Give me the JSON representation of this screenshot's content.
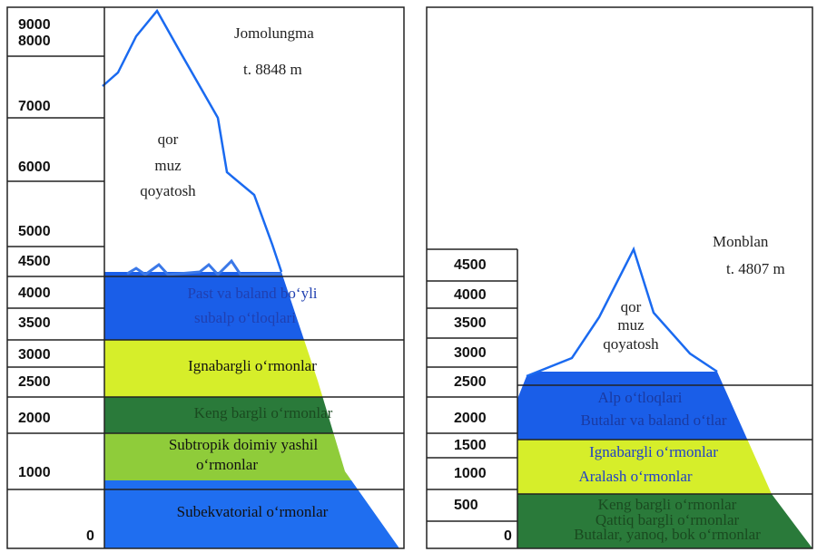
{
  "panels": [
    {
      "scale": [
        "9000",
        "8000",
        "7000",
        "6000",
        "5000",
        "4500",
        "4000",
        "3500",
        "3000",
        "2500",
        "2000",
        "1000",
        "0"
      ],
      "peak": "Jomolungma",
      "height": "t. 8848 m",
      "upper": [
        "qor",
        "muz",
        "qoyatosh"
      ],
      "zones": [
        [
          "Past va baland bo‘yli",
          "subalp o‘tloqlari"
        ],
        [
          "Ignabargli o‘rmonlar"
        ],
        [
          "Keng bargli o‘rmonlar"
        ],
        [
          "Subtropik doimiy yashil",
          "o‘rmonlar"
        ],
        [
          "Subekvatorial o‘rmonlar"
        ]
      ]
    },
    {
      "scale": [
        "4500",
        "4000",
        "3500",
        "3000",
        "2500",
        "2000",
        "1500",
        "1000",
        "500",
        "0"
      ],
      "peak": "Monblan",
      "height": "t. 4807 m",
      "upper": [
        "qor",
        "muz",
        "qoyatosh"
      ],
      "zones": [
        [
          "Alp o‘tloqlari",
          "Butalar va baland o‘tlar"
        ],
        [
          "Ignabargli o‘rmonlar",
          "Aralash o‘rmonlar"
        ],
        [
          "Keng bargli o‘rmonlar",
          "Qattiq bargli o‘rmonlar",
          "Butalar, yanoq, bok o‘rmonlar"
        ]
      ]
    }
  ]
}
